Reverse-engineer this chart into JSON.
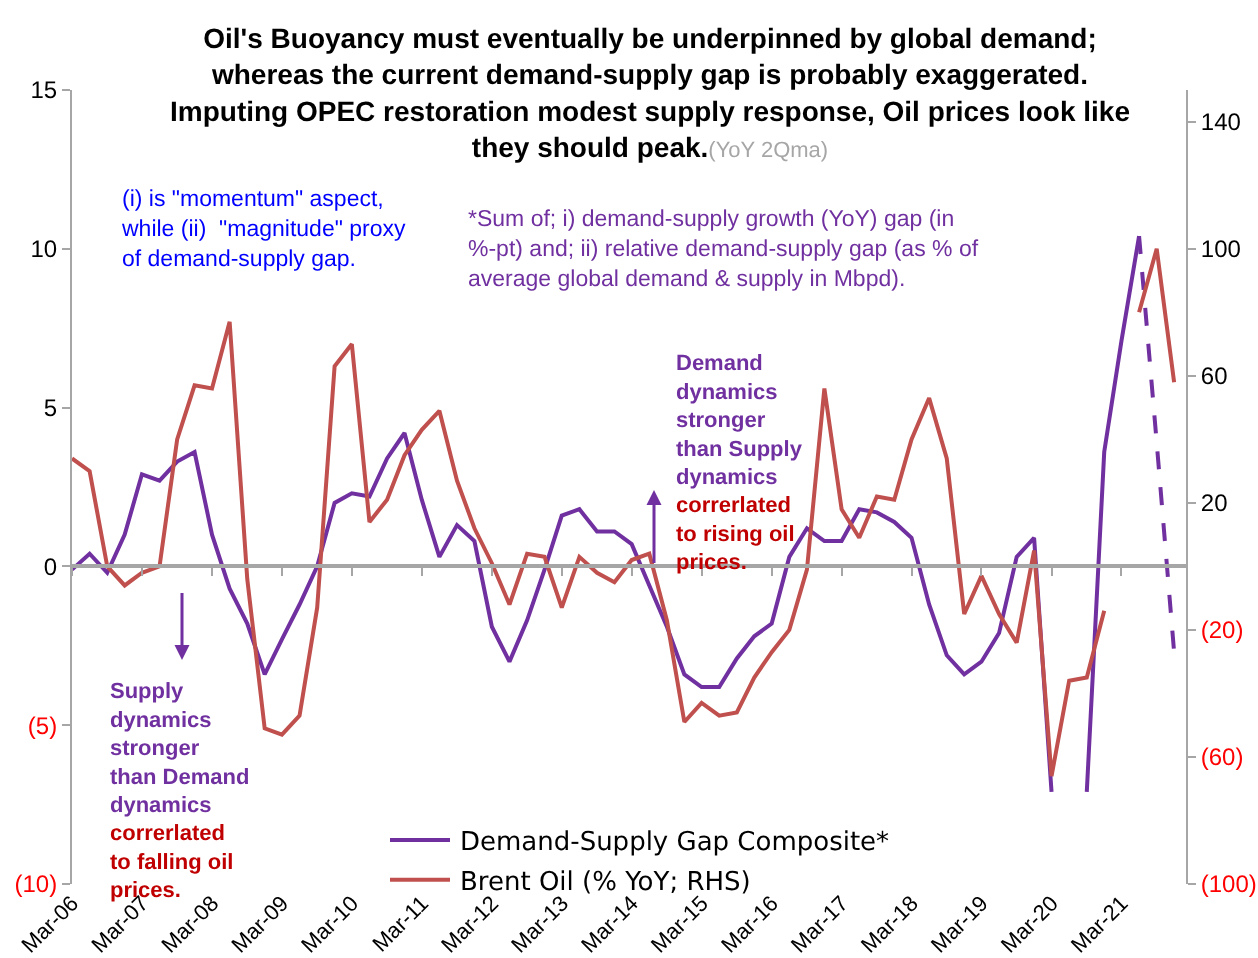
{
  "chart_data": {
    "type": "line",
    "title": "Oil's Buoyancy must eventually be underpinned by global demand;\nwhereas the current demand-supply gap is probably exaggerated.\nImputing OPEC restoration modest supply response, Oil prices look like\nthey should peak.",
    "subtitle": "(YoY 2Qma)",
    "x": [
      "2006-03",
      "2006-06",
      "2006-09",
      "2006-12",
      "2007-03",
      "2007-06",
      "2007-09",
      "2007-12",
      "2008-03",
      "2008-06",
      "2008-09",
      "2008-12",
      "2009-03",
      "2009-06",
      "2009-09",
      "2009-12",
      "2010-03",
      "2010-06",
      "2010-09",
      "2010-12",
      "2011-03",
      "2011-06",
      "2011-09",
      "2011-12",
      "2012-03",
      "2012-06",
      "2012-09",
      "2012-12",
      "2013-03",
      "2013-06",
      "2013-09",
      "2013-12",
      "2014-03",
      "2014-06",
      "2014-09",
      "2014-12",
      "2015-03",
      "2015-06",
      "2015-09",
      "2015-12",
      "2016-03",
      "2016-06",
      "2016-09",
      "2016-12",
      "2017-03",
      "2017-06",
      "2017-09",
      "2017-12",
      "2018-03",
      "2018-06",
      "2018-09",
      "2018-12",
      "2019-03",
      "2019-06",
      "2019-09",
      "2019-12",
      "2020-03",
      "2020-06",
      "2020-09",
      "2020-12",
      "2021-03",
      "2021-06",
      "2021-09",
      "2021-12"
    ],
    "series": [
      {
        "name": "Demand-Supply Gap Composite*",
        "color": "#7030a0",
        "line_style": "solid",
        "values": [
          -0.1,
          0.4,
          -0.2,
          1.0,
          2.9,
          2.7,
          3.3,
          3.6,
          1.0,
          -0.7,
          -1.8,
          -3.4,
          -2.3,
          -1.2,
          0,
          2.0,
          2.3,
          2.2,
          3.4,
          4.2,
          2.1,
          0.3,
          1.3,
          0.8,
          -1.9,
          -3.0,
          -1.7,
          -0.1,
          1.6,
          1.8,
          1.1,
          1.1,
          0.7,
          -0.6,
          -1.9,
          -3.4,
          -3.8,
          -3.8,
          -2.9,
          -2.2,
          -1.8,
          0.3,
          1.2,
          0.8,
          0.8,
          1.8,
          1.7,
          1.4,
          0.9,
          -1.2,
          -2.8,
          -3.4,
          -3.0,
          -2.1,
          0.3,
          0.9,
          -7.1,
          null,
          -7.1,
          3.6,
          7.1,
          10.4,
          null,
          null
        ]
      },
      {
        "color": "#7030a0",
        "line_style": "dashed",
        "x": [
          "2021-06",
          "2021-09",
          "2021-12"
        ],
        "values": [
          10.4,
          3.9,
          -2.7
        ]
      },
      {
        "name": "Brent Oil (% YoY; RHS)",
        "color": "#c0504d",
        "line_style": "solid",
        "axis": "y2",
        "values": [
          34,
          30,
          0,
          -6,
          -2,
          0,
          40,
          57,
          56,
          77,
          -4,
          -51,
          -53,
          -47,
          -13,
          63,
          70,
          14,
          21,
          35,
          43,
          49,
          27,
          12,
          1,
          -12,
          4,
          3,
          -13,
          3,
          -2,
          -5,
          2,
          4,
          -17,
          -49,
          -43,
          -47,
          -46,
          -35,
          -27,
          -20,
          -1,
          56,
          18,
          9,
          22,
          21,
          40,
          53,
          34,
          -15,
          -3,
          -15,
          -24,
          5,
          -66,
          -36,
          -35,
          -14,
          null,
          80,
          100,
          58
        ]
      }
    ],
    "xlim": [
      "2006-03",
      "2022-02"
    ],
    "xticks": [
      {
        "value": "2006-03",
        "label": "Mar-06"
      },
      {
        "value": "2007-03",
        "label": "Mar-07"
      },
      {
        "value": "2008-03",
        "label": "Mar-08"
      },
      {
        "value": "2009-03",
        "label": "Mar-09"
      },
      {
        "value": "2010-03",
        "label": "Mar-10"
      },
      {
        "value": "2011-03",
        "label": "Mar-11"
      },
      {
        "value": "2012-03",
        "label": "Mar-12"
      },
      {
        "value": "2013-03",
        "label": "Mar-13"
      },
      {
        "value": "2014-03",
        "label": "Mar-14"
      },
      {
        "value": "2015-03",
        "label": "Mar-15"
      },
      {
        "value": "2016-03",
        "label": "Mar-16"
      },
      {
        "value": "2017-03",
        "label": "Mar-17"
      },
      {
        "value": "2018-03",
        "label": "Mar-18"
      },
      {
        "value": "2019-03",
        "label": "Mar-19"
      },
      {
        "value": "2020-03",
        "label": "Mar-20"
      },
      {
        "value": "2021-03",
        "label": "Mar-21"
      }
    ],
    "ylim": [
      -10,
      15
    ],
    "yticks": [
      {
        "value": -10,
        "label": "(10)"
      },
      {
        "value": -5,
        "label": "(5)"
      },
      0,
      5,
      10,
      15
    ],
    "y2lim": [
      -100,
      150
    ],
    "y2ticks": [
      {
        "value": -100,
        "label": "(100)"
      },
      {
        "value": -60,
        "label": "(60)"
      },
      {
        "value": -20,
        "label": "(20)"
      },
      20,
      60,
      100,
      140
    ],
    "annotations": [
      "(i) is \"momentum\" aspect,\nwhile (ii)  \"magnitude\" proxy\nof demand-supply gap.",
      "*Sum of; i) demand-supply growth (YoY) gap (in\n%-pt) and; ii) relative demand-supply gap (as % of\naverage global demand & supply in Mbpd).",
      "Supply\ndynamics\nstronger\nthan Demand\ndynamics",
      "correrlated\nto falling oil\nprices.",
      "Demand\ndynamics\nstronger\nthan Supply\ndynamics",
      "correrlated\nto rising oil\nprices."
    ],
    "legend": "bottom",
    "marker": "none"
  }
}
